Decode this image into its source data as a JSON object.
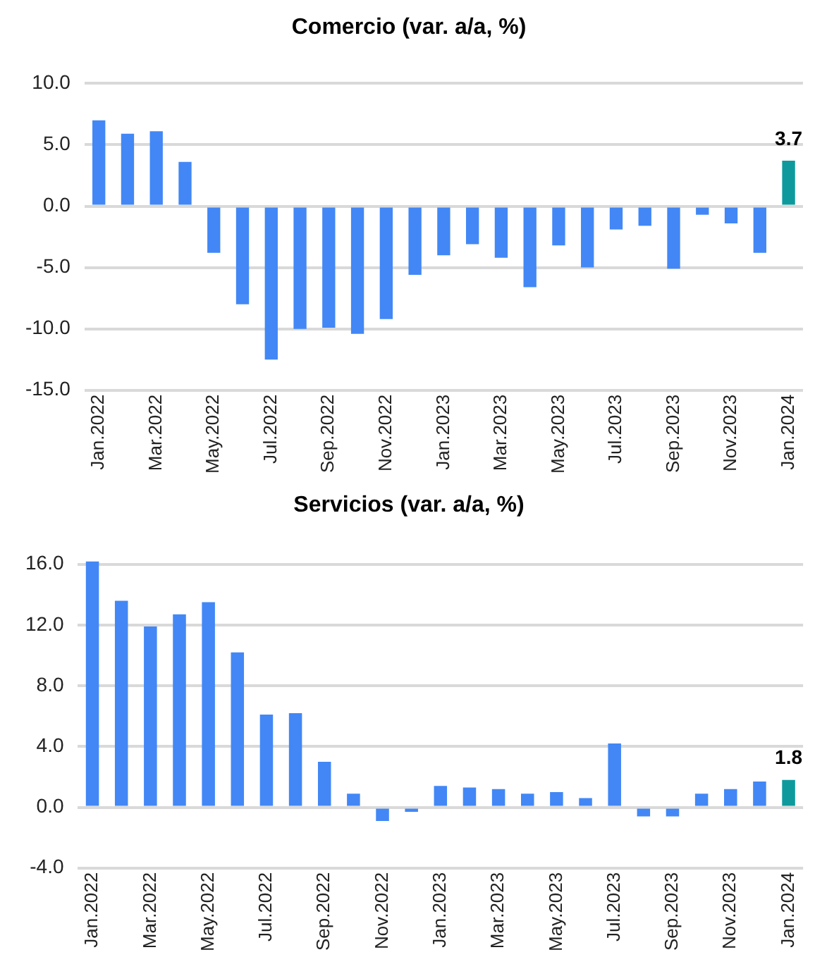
{
  "chart_data": [
    {
      "type": "bar",
      "title": "Comercio (var. a/a, %)",
      "categories": [
        "Jan.2022",
        null,
        "Mar.2022",
        null,
        "May.2022",
        null,
        "Jul.2022",
        null,
        "Sep.2022",
        null,
        "Nov.2022",
        null,
        "Jan.2023",
        null,
        "Mar.2023",
        null,
        "May.2023",
        null,
        "Jul.2023",
        null,
        "Sep.2023",
        null,
        "Nov.2023",
        null,
        "Jan.2024"
      ],
      "values": [
        7.0,
        5.9,
        6.1,
        3.6,
        -3.8,
        -8.0,
        -12.5,
        -10.0,
        -9.9,
        -10.4,
        -9.2,
        -5.6,
        -4.0,
        -3.1,
        -4.2,
        -6.6,
        -3.2,
        -5.0,
        -1.9,
        -1.6,
        -5.1,
        -0.7,
        -1.4,
        -3.8,
        3.7
      ],
      "colors": [
        "#4287f5",
        "#4287f5",
        "#4287f5",
        "#4287f5",
        "#4287f5",
        "#4287f5",
        "#4287f5",
        "#4287f5",
        "#4287f5",
        "#4287f5",
        "#4287f5",
        "#4287f5",
        "#4287f5",
        "#4287f5",
        "#4287f5",
        "#4287f5",
        "#4287f5",
        "#4287f5",
        "#4287f5",
        "#4287f5",
        "#4287f5",
        "#4287f5",
        "#4287f5",
        "#4287f5",
        "#0e9a9c"
      ],
      "value_labels": [
        null,
        null,
        null,
        null,
        null,
        null,
        null,
        null,
        null,
        null,
        null,
        null,
        null,
        null,
        null,
        null,
        null,
        null,
        null,
        null,
        null,
        null,
        null,
        null,
        "3.7"
      ],
      "ylim": [
        -15,
        10
      ],
      "yticks": [
        {
          "value": -15,
          "label": "-15.0"
        },
        {
          "value": -10,
          "label": "-10.0"
        },
        {
          "value": -5,
          "label": "-5.0"
        },
        {
          "value": 0,
          "label": "0.0"
        },
        {
          "value": 5,
          "label": "5.0"
        },
        {
          "value": 10,
          "label": "10.0"
        }
      ],
      "grid": "y"
    },
    {
      "type": "bar",
      "title": "Servicios (var. a/a, %)",
      "categories": [
        "Jan.2022",
        null,
        "Mar.2022",
        null,
        "May.2022",
        null,
        "Jul.2022",
        null,
        "Sep.2022",
        null,
        "Nov.2022",
        null,
        "Jan.2023",
        null,
        "Mar.2023",
        null,
        "May.2023",
        null,
        "Jul.2023",
        null,
        "Sep.2023",
        null,
        "Nov.2023",
        null,
        "Jan.2024"
      ],
      "values": [
        16.2,
        13.6,
        11.9,
        12.7,
        13.5,
        10.2,
        6.1,
        6.2,
        3.0,
        0.9,
        -0.9,
        -0.3,
        1.4,
        1.3,
        1.2,
        0.9,
        1.0,
        0.6,
        4.2,
        -0.6,
        -0.6,
        0.9,
        1.2,
        1.7,
        1.8
      ],
      "colors": [
        "#4287f5",
        "#4287f5",
        "#4287f5",
        "#4287f5",
        "#4287f5",
        "#4287f5",
        "#4287f5",
        "#4287f5",
        "#4287f5",
        "#4287f5",
        "#4287f5",
        "#4287f5",
        "#4287f5",
        "#4287f5",
        "#4287f5",
        "#4287f5",
        "#4287f5",
        "#4287f5",
        "#4287f5",
        "#4287f5",
        "#4287f5",
        "#4287f5",
        "#4287f5",
        "#4287f5",
        "#0e9a9c"
      ],
      "value_labels": [
        null,
        null,
        null,
        null,
        null,
        null,
        null,
        null,
        null,
        null,
        null,
        null,
        null,
        null,
        null,
        null,
        null,
        null,
        null,
        null,
        null,
        null,
        null,
        null,
        "1.8"
      ],
      "ylim": [
        -4,
        16.2
      ],
      "yticks": [
        {
          "value": -4,
          "label": "-4.0"
        },
        {
          "value": 0,
          "label": "0.0"
        },
        {
          "value": 4,
          "label": "4.0"
        },
        {
          "value": 8,
          "label": "8.0"
        },
        {
          "value": 12,
          "label": "12.0"
        },
        {
          "value": 16,
          "label": "16.0"
        }
      ],
      "grid": "y"
    }
  ]
}
